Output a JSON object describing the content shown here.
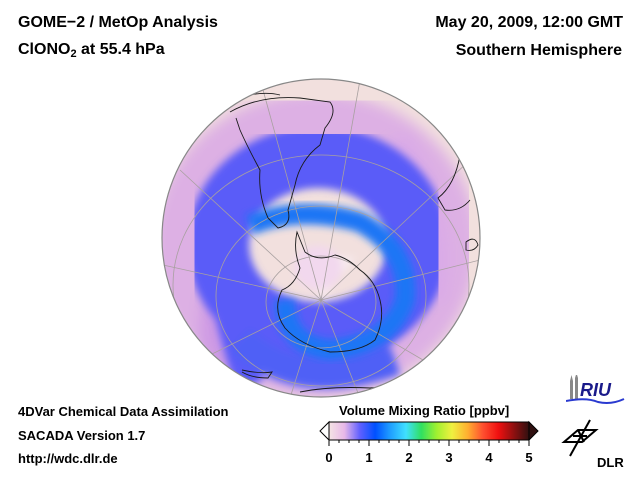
{
  "header": {
    "title": "GOME−2 / MetOp Analysis",
    "species_main": "ClONO",
    "species_sub": "2",
    "species_rest": " at 55.4 hPa",
    "date": "May 20, 2009, 12:00 GMT",
    "hemisphere": "Southern Hemisphere"
  },
  "footer": {
    "line1": "4DVar Chemical Data Assimilation",
    "line2": "SACADA Version 1.7",
    "line3": "http://wdc.dlr.de"
  },
  "colorbar": {
    "title": "Volume Mixing Ratio [ppbv]",
    "ticks": [
      "0",
      "1",
      "2",
      "3",
      "4",
      "5"
    ],
    "range": [
      0,
      5
    ],
    "colors": [
      "#f4e4e4",
      "#e8b8e8",
      "#6060ff",
      "#0050ff",
      "#20a0ff",
      "#40e0ff",
      "#30e060",
      "#a0f030",
      "#f0f040",
      "#ffb030",
      "#ff5030",
      "#f01010",
      "#901010",
      "#301010"
    ]
  },
  "map": {
    "projection": "orthographic-south-pole",
    "ocean_color": "#f2e0de",
    "vortex_color": "#3a56f5",
    "core_color": "#1f76f5",
    "land_outline": "#1a1a1a",
    "grid_color": "#a8a0a0"
  },
  "logos": {
    "riu": "RIU",
    "dlr": "DLR"
  }
}
